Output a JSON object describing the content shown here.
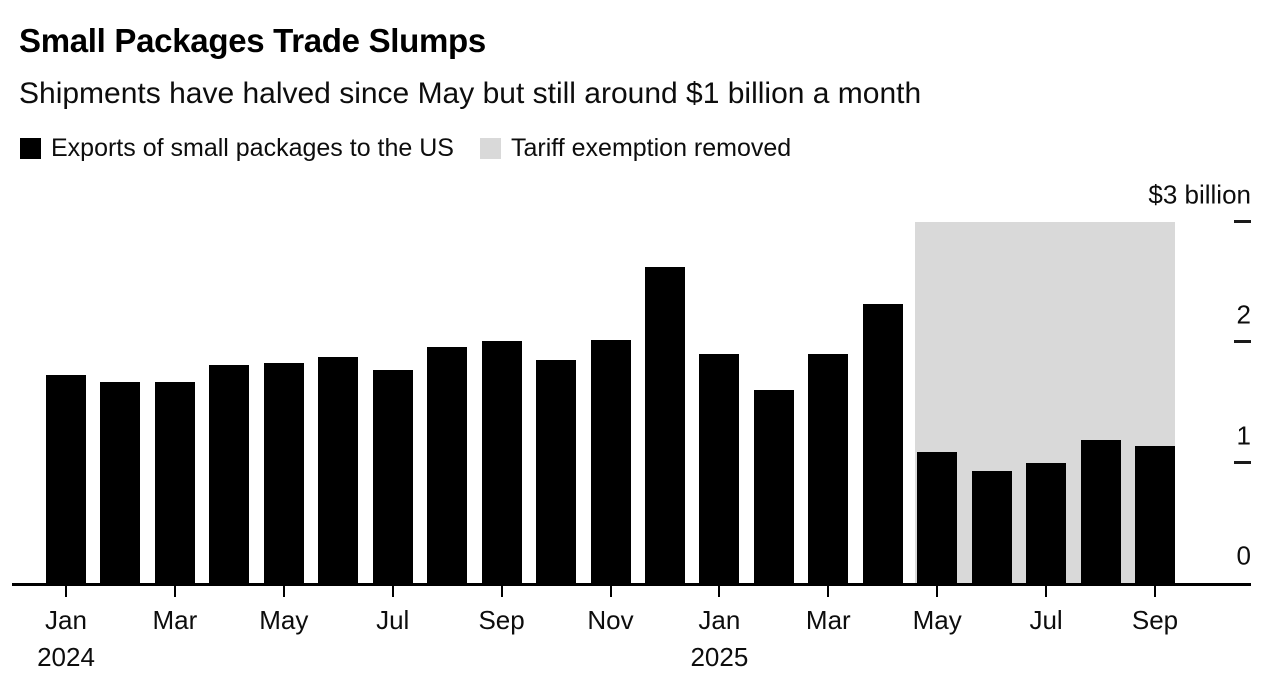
{
  "header": {
    "title": "Small Packages Trade Slumps",
    "subtitle": "Shipments have halved since May but still around $1 billion a month"
  },
  "legend": [
    {
      "label": "Exports of small packages to the US",
      "color": "#000000"
    },
    {
      "label": "Tariff exemption removed",
      "color": "#d9d9d9"
    }
  ],
  "chart_data": {
    "type": "bar",
    "title": "Small Packages Trade Slumps",
    "subtitle": "Shipments have halved since May but still around $1 billion a month",
    "unit": "$ billion",
    "bar_color": "#000000",
    "categories": [
      "Jan 2024",
      "Feb 2024",
      "Mar 2024",
      "Apr 2024",
      "May 2024",
      "Jun 2024",
      "Jul 2024",
      "Aug 2024",
      "Sep 2024",
      "Oct 2024",
      "Nov 2024",
      "Dec 2024",
      "Jan 2025",
      "Feb 2025",
      "Mar 2025",
      "Apr 2025",
      "May 2025",
      "Jun 2025",
      "Jul 2025",
      "Aug 2025",
      "Sep 2025"
    ],
    "series": [
      {
        "name": "Exports of small packages to the US",
        "values": [
          1.73,
          1.67,
          1.67,
          1.81,
          1.83,
          1.88,
          1.77,
          1.96,
          2.01,
          1.85,
          2.02,
          2.63,
          1.9,
          1.6,
          1.9,
          2.32,
          1.09,
          0.93,
          1.0,
          1.19,
          1.14
        ]
      }
    ],
    "band": {
      "label": "Tariff exemption removed",
      "from": "May 2025",
      "to": "Sep 2025",
      "color": "#d9d9d9"
    },
    "y_axis": {
      "side": "right",
      "ylim": [
        0,
        3
      ],
      "ticks": [
        0,
        1,
        2,
        3
      ],
      "top_label": "$3 billion"
    },
    "x_axis": {
      "tick_every": 2,
      "year_labels": [
        {
          "under": "Jan 2024",
          "text": "2024"
        },
        {
          "under": "Jan 2025",
          "text": "2025"
        }
      ]
    },
    "grid": false,
    "legend_position": "top-left"
  }
}
